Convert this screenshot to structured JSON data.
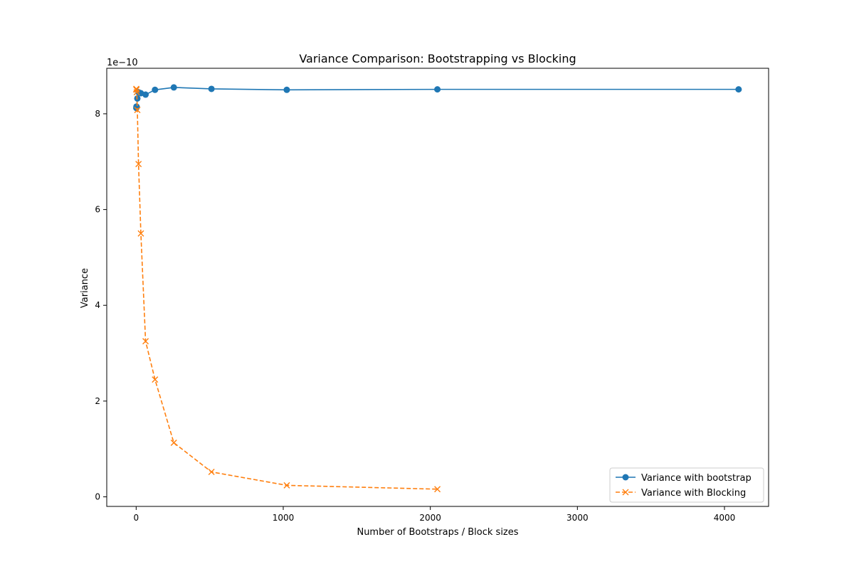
{
  "chart_data": {
    "type": "line",
    "title": "Variance Comparison: Bootstrapping vs Blocking",
    "xlabel": "Number of Bootstraps  / Block sizes",
    "ylabel": "Variance",
    "y_offset_label": "1e−10",
    "xlim": [
      -200,
      4300
    ],
    "ylim": [
      -2e-11,
      8.95e-10
    ],
    "x_ticks": [
      0,
      1000,
      2000,
      3000,
      4000
    ],
    "x_tick_labels": [
      "0",
      "1000",
      "2000",
      "3000",
      "4000"
    ],
    "y_ticks": [
      0,
      2e-10,
      4e-10,
      6e-10,
      8e-10
    ],
    "y_tick_labels": [
      "0",
      "2",
      "4",
      "6",
      "8"
    ],
    "grid": false,
    "legend_position": "lower-right",
    "series": [
      {
        "name": "Variance with bootstrap",
        "color": "#1f77b4",
        "style": "solid",
        "marker": "circle",
        "x": [
          1,
          2,
          4,
          8,
          16,
          32,
          64,
          128,
          256,
          512,
          1024,
          2048,
          4096
        ],
        "y": [
          8.12e-10,
          8.15e-10,
          8.14e-10,
          8.32e-10,
          8.45e-10,
          8.43e-10,
          8.4e-10,
          8.5e-10,
          8.55e-10,
          8.52e-10,
          8.5e-10,
          8.51e-10,
          8.51e-10
        ]
      },
      {
        "name": "Variance with Blocking",
        "color": "#ff7f0e",
        "style": "dashed",
        "marker": "x",
        "x": [
          1,
          2,
          4,
          8,
          16,
          32,
          64,
          128,
          256,
          512,
          1024,
          2048
        ],
        "y": [
          8.52e-10,
          8.5e-10,
          8.45e-10,
          8.08e-10,
          6.95e-10,
          5.5e-10,
          3.25e-10,
          2.45e-10,
          1.13e-10,
          5.2e-11,
          2.4e-11,
          1.6e-11
        ]
      }
    ]
  }
}
